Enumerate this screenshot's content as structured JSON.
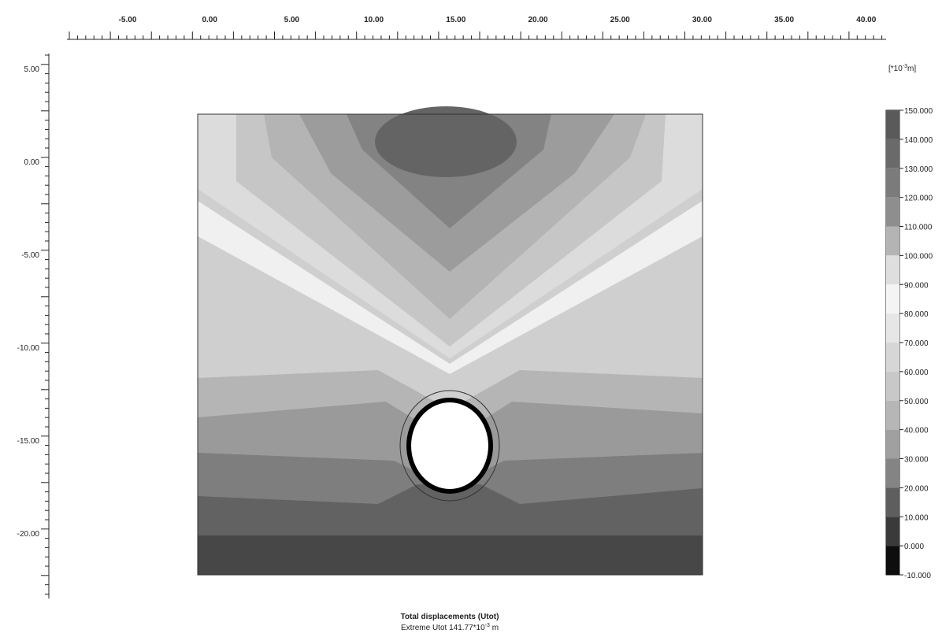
{
  "x_ruler": {
    "labels": [
      "-5.00",
      "0.00",
      "5.00",
      "10.00",
      "15.00",
      "20.00",
      "25.00",
      "30.00",
      "35.00",
      "40.00"
    ]
  },
  "y_ruler": {
    "labels": [
      "5.00",
      "0.00",
      "-5.00",
      "-10.00",
      "-15.00",
      "-20.00"
    ]
  },
  "legend": {
    "unit": {
      "prefix": "[*10",
      "exponent": "-3",
      "suffix": "m]"
    },
    "labels": [
      "150.000",
      "140.000",
      "130.000",
      "120.000",
      "110.000",
      "100.000",
      "90.000",
      "80.000",
      "70.000",
      "60.000",
      "50.000",
      "40.000",
      "30.000",
      "20.000",
      "10.000",
      "0.000",
      "-10.000"
    ]
  },
  "caption": {
    "title": "Total displacements (Utot)",
    "subtitle": {
      "prefix": "Extreme Utot 141.77*10",
      "exponent": "-3",
      "suffix": " m"
    }
  }
}
